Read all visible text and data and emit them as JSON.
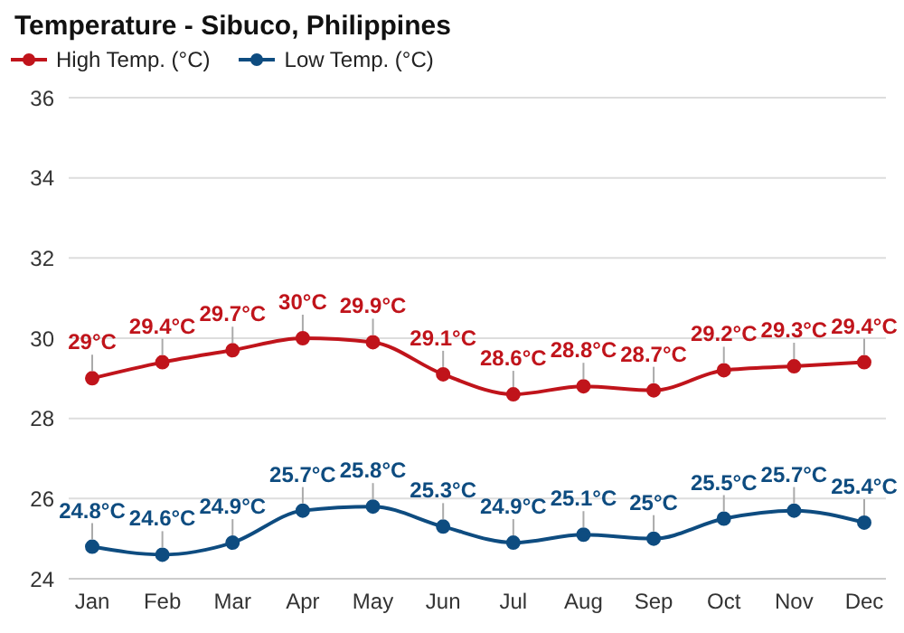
{
  "chart_data": {
    "type": "line",
    "title": "Temperature - Sibuco, Philippines",
    "categories": [
      "Jan",
      "Feb",
      "Mar",
      "Apr",
      "May",
      "Jun",
      "Jul",
      "Aug",
      "Sep",
      "Oct",
      "Nov",
      "Dec"
    ],
    "series": [
      {
        "name": "High Temp. (°C)",
        "color": "#c0141b",
        "values": [
          29,
          29.4,
          29.7,
          30,
          29.9,
          29.1,
          28.6,
          28.8,
          28.7,
          29.2,
          29.3,
          29.4
        ],
        "value_labels": [
          "29°C",
          "29.4°C",
          "29.7°C",
          "30°C",
          "29.9°C",
          "29.1°C",
          "28.6°C",
          "28.8°C",
          "28.7°C",
          "29.2°C",
          "29.3°C",
          "29.4°C"
        ]
      },
      {
        "name": "Low Temp. (°C)",
        "color": "#0e4c80",
        "values": [
          24.8,
          24.6,
          24.9,
          25.7,
          25.8,
          25.3,
          24.9,
          25.1,
          25,
          25.5,
          25.7,
          25.4
        ],
        "value_labels": [
          "24.8°C",
          "24.6°C",
          "24.9°C",
          "25.7°C",
          "25.8°C",
          "25.3°C",
          "24.9°C",
          "25.1°C",
          "25°C",
          "25.5°C",
          "25.7°C",
          "25.4°C"
        ]
      }
    ],
    "ylim": [
      24,
      36
    ],
    "yticks": [
      24,
      26,
      28,
      30,
      32,
      34,
      36
    ],
    "grid": "y",
    "legend": "top left",
    "marker": "circle",
    "line_style": "solid"
  }
}
